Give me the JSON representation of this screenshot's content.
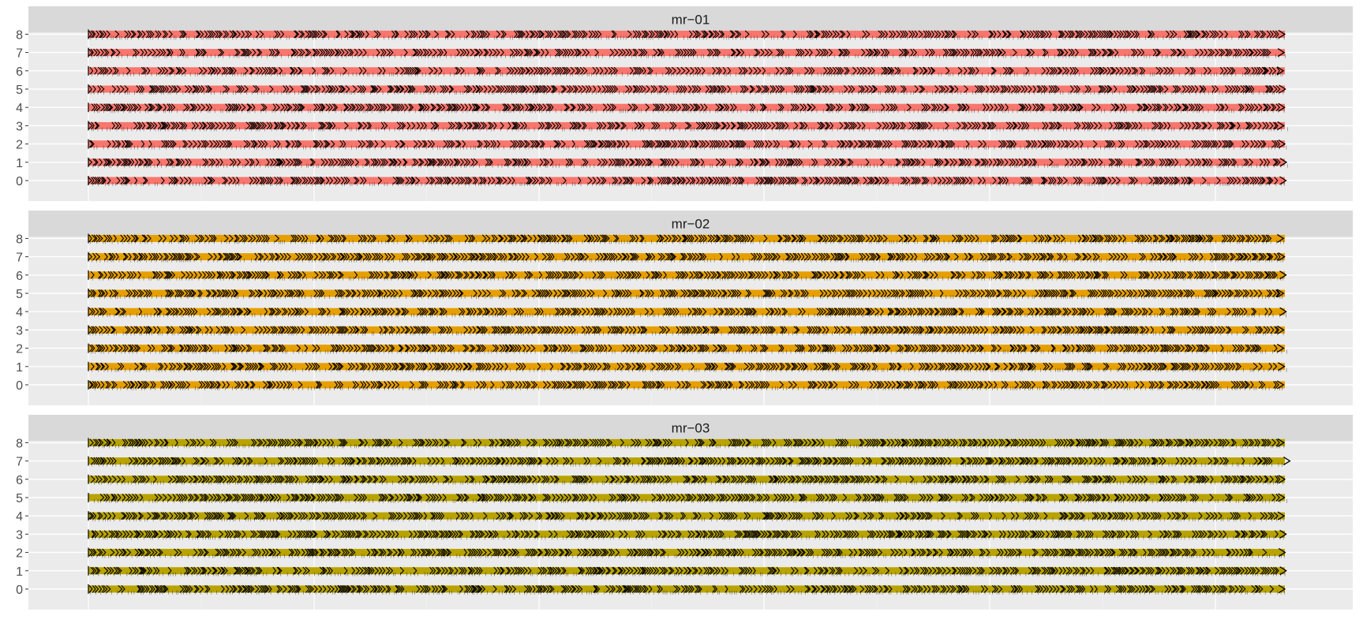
{
  "chart_data": {
    "type": "gene-track",
    "xlabel": "",
    "ylabel": "",
    "x_tick_labels_shown": false,
    "grid": true,
    "legend": "none",
    "track_end_arrow": true,
    "panels": [
      {
        "title": "mr−01",
        "fill_color": "#F8766D",
        "tracks": [
          "0",
          "1",
          "2",
          "3",
          "4",
          "5",
          "6",
          "7",
          "8"
        ],
        "seed": 101,
        "highlight_rate": 0.12,
        "leading_bar": [
          false,
          true,
          false,
          true,
          true,
          true,
          false,
          false,
          true
        ]
      },
      {
        "title": "mr−02",
        "fill_color": "#E69F00",
        "tracks": [
          "0",
          "1",
          "2",
          "3",
          "4",
          "5",
          "6",
          "7",
          "8"
        ],
        "seed": 202,
        "highlight_rate": 0.1,
        "leading_bar": [
          false,
          false,
          false,
          false,
          true,
          false,
          false,
          true,
          true
        ]
      },
      {
        "title": "mr−03",
        "fill_color": "#B8A300",
        "tracks": [
          "0",
          "1",
          "2",
          "3",
          "4",
          "5",
          "6",
          "7",
          "8"
        ],
        "seed": 303,
        "highlight_rate": 0.1,
        "leading_bar": [
          false,
          false,
          false,
          false,
          false,
          false,
          false,
          false,
          false
        ]
      }
    ]
  }
}
